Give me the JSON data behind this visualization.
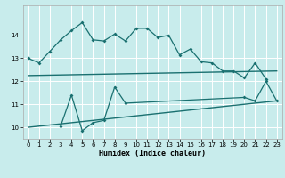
{
  "xlabel": "Humidex (Indice chaleur)",
  "bg_color": "#c8ecec",
  "grid_color": "#ffffff",
  "line_color": "#1a7070",
  "x": [
    0,
    1,
    2,
    3,
    4,
    5,
    6,
    7,
    8,
    9,
    10,
    11,
    12,
    13,
    14,
    15,
    16,
    17,
    18,
    19,
    20,
    21,
    22,
    23
  ],
  "y_top": [
    13.0,
    12.8,
    13.3,
    13.8,
    14.2,
    14.55,
    13.8,
    13.75,
    14.05,
    13.75,
    14.3,
    14.3,
    13.9,
    14.0,
    13.15,
    13.4,
    12.85,
    12.8,
    12.45,
    12.45,
    12.15,
    12.8,
    12.1,
    null
  ],
  "y_bot": [
    null,
    null,
    null,
    10.05,
    11.4,
    9.85,
    10.2,
    10.3,
    11.75,
    11.05,
    null,
    null,
    null,
    null,
    null,
    null,
    null,
    null,
    null,
    null,
    11.3,
    11.15,
    12.0,
    11.15
  ],
  "y_reg1_start": 12.25,
  "y_reg1_end": 12.45,
  "y_reg2_start": 10.0,
  "y_reg2_end": 11.15,
  "ylim": [
    9.5,
    15.3
  ],
  "yticks": [
    10,
    11,
    12,
    13,
    14
  ],
  "xticks": [
    0,
    1,
    2,
    3,
    4,
    5,
    6,
    7,
    8,
    9,
    10,
    11,
    12,
    13,
    14,
    15,
    16,
    17,
    18,
    19,
    20,
    21,
    22,
    23
  ]
}
